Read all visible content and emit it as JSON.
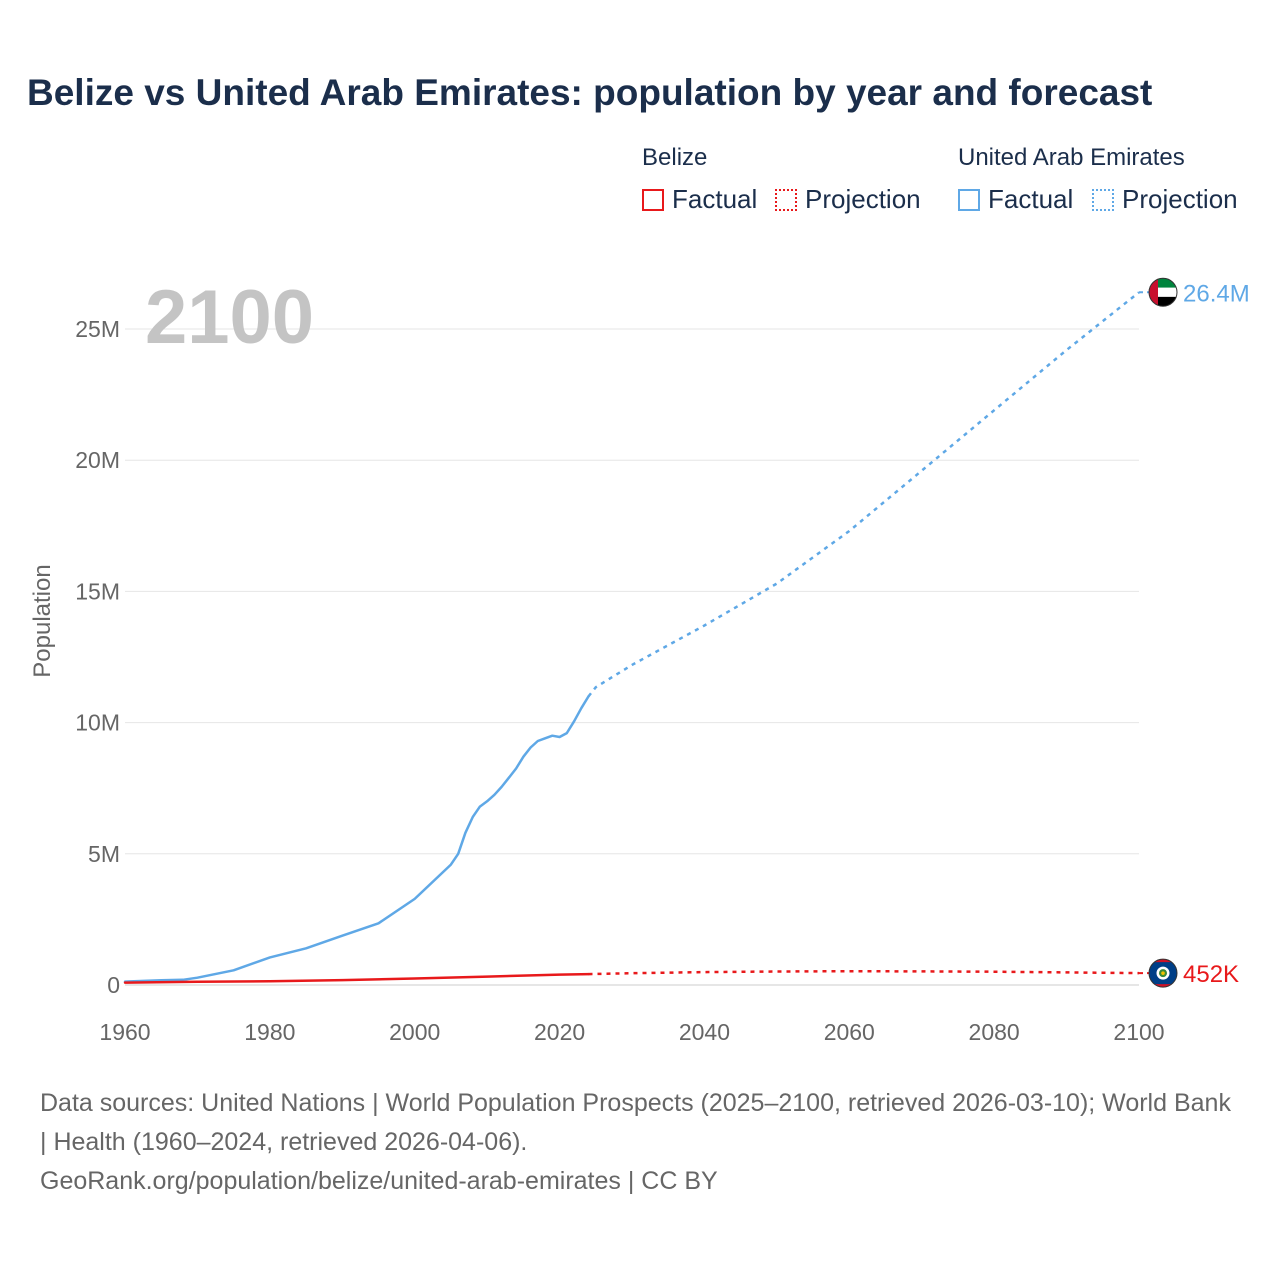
{
  "title": "Belize vs United Arab Emirates: population by year and forecast",
  "legend": {
    "groups": [
      {
        "name": "Belize",
        "color": "#e8191b",
        "factual_label": "Factual",
        "projection_label": "Projection"
      },
      {
        "name": "United Arab Emirates",
        "color": "#5fa8e6",
        "factual_label": "Factual",
        "projection_label": "Projection"
      }
    ]
  },
  "footer": {
    "sources": "Data sources: United Nations | World Population Prospects (2025–2100, retrieved 2026-03-10); World Bank | Health (1960–2024, retrieved 2026-04-06).",
    "url": "GeoRank.org/population/belize/united-arab-emirates | CC BY"
  },
  "chart_data": {
    "type": "line",
    "year_label": "2100",
    "ylabel": "Population",
    "xlim": [
      1960,
      2100
    ],
    "ylim": [
      0,
      27000000
    ],
    "xticks": [
      1960,
      1980,
      2000,
      2020,
      2040,
      2060,
      2080,
      2100
    ],
    "xtick_labels": [
      "1960",
      "1980",
      "2000",
      "2020",
      "2040",
      "2060",
      "2080",
      "2100"
    ],
    "yticks": [
      0,
      5000000,
      10000000,
      15000000,
      20000000,
      25000000
    ],
    "ytick_labels": [
      "0",
      "5M",
      "10M",
      "15M",
      "20M",
      "25M"
    ],
    "series": [
      {
        "name": "United Arab Emirates",
        "color": "#5fa8e6",
        "end_label": "26.4M",
        "flag": "uae-flag",
        "factual": {
          "x": [
            1960,
            1965,
            1968,
            1970,
            1975,
            1980,
            1985,
            1990,
            1995,
            2000,
            2005,
            2006,
            2007,
            2008,
            2009,
            2010,
            2011,
            2012,
            2013,
            2014,
            2015,
            2016,
            2017,
            2018,
            2019,
            2020,
            2021,
            2022,
            2023,
            2024
          ],
          "y": [
            130000,
            180000,
            200000,
            280000,
            560000,
            1050000,
            1400000,
            1880000,
            2350000,
            3280000,
            4590000,
            5000000,
            5800000,
            6400000,
            6800000,
            7000000,
            7250000,
            7550000,
            7900000,
            8250000,
            8700000,
            9050000,
            9300000,
            9400000,
            9500000,
            9450000,
            9600000,
            10050000,
            10550000,
            11000000
          ]
        },
        "projection": {
          "x": [
            2024,
            2025,
            2030,
            2040,
            2050,
            2060,
            2070,
            2080,
            2090,
            2100
          ],
          "y": [
            11000000,
            11350000,
            12200000,
            13700000,
            15300000,
            17300000,
            19600000,
            21900000,
            24200000,
            26400000
          ]
        }
      },
      {
        "name": "Belize",
        "color": "#e8191b",
        "end_label": "452K",
        "flag": "belize-flag",
        "factual": {
          "x": [
            1960,
            1970,
            1980,
            1990,
            2000,
            2010,
            2020,
            2024
          ],
          "y": [
            93000,
            122000,
            146000,
            188000,
            247000,
            322000,
            398000,
            417000
          ]
        },
        "projection": {
          "x": [
            2024,
            2030,
            2040,
            2050,
            2060,
            2070,
            2080,
            2090,
            2100
          ],
          "y": [
            417000,
            450000,
            490000,
            515000,
            525000,
            520000,
            505000,
            480000,
            452000
          ]
        }
      }
    ]
  }
}
